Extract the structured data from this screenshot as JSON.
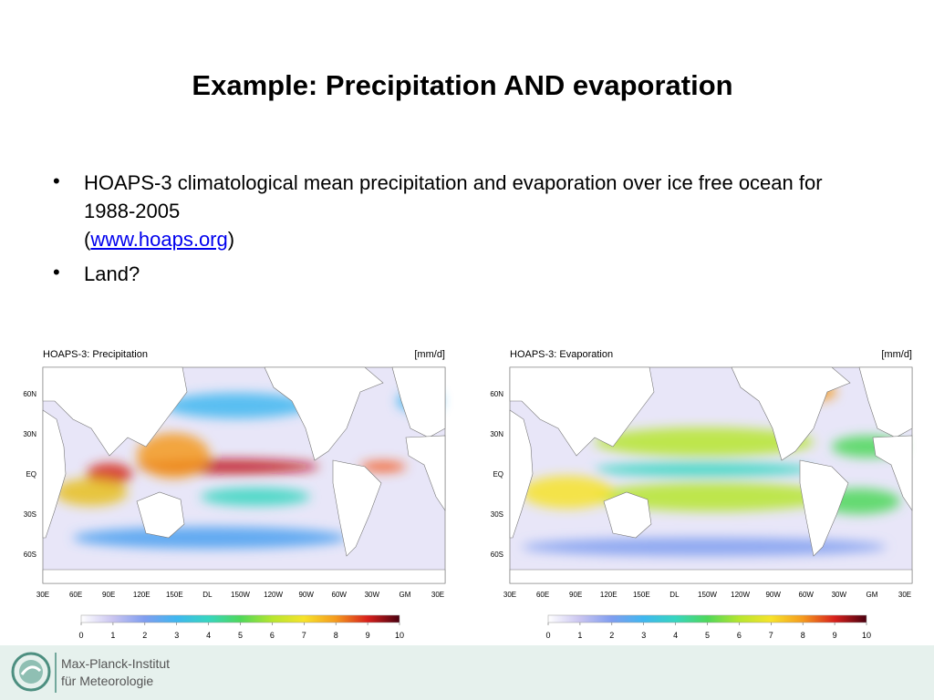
{
  "title": "Example: Precipitation AND evaporation",
  "bullets": [
    {
      "text": "HOAPS-3 climatological mean precipitation and evaporation over ice free ocean for 1988-2005",
      "link_open": "(",
      "link": "www.hoaps.org",
      "link_close": ")"
    },
    {
      "text": "Land?"
    }
  ],
  "panels": [
    {
      "title": "HOAPS-3: Precipitation",
      "unit": "[mm/d]",
      "lat_labels": [
        "60N",
        "30N",
        "EQ",
        "30S",
        "60S"
      ],
      "lon_labels": [
        "30E",
        "60E",
        "90E",
        "120E",
        "150E",
        "DL",
        "150W",
        "120W",
        "90W",
        "60W",
        "30W",
        "GM",
        "30E"
      ],
      "colorbar_ticks": [
        0,
        1,
        2,
        3,
        4,
        5,
        6,
        7,
        8,
        9,
        10
      ]
    },
    {
      "title": "HOAPS-3: Evaporation",
      "unit": "[mm/d]",
      "lat_labels": [
        "60N",
        "30N",
        "EQ",
        "30S",
        "60S"
      ],
      "lon_labels": [
        "30E",
        "60E",
        "90E",
        "120E",
        "150E",
        "DL",
        "150W",
        "120W",
        "90W",
        "60W",
        "30W",
        "GM",
        "30E"
      ],
      "colorbar_ticks": [
        0,
        1,
        2,
        3,
        4,
        5,
        6,
        7,
        8,
        9,
        10
      ]
    }
  ],
  "footer": {
    "line1": "Max-Planck-Institut",
    "line2": "für Meteorologie"
  }
}
